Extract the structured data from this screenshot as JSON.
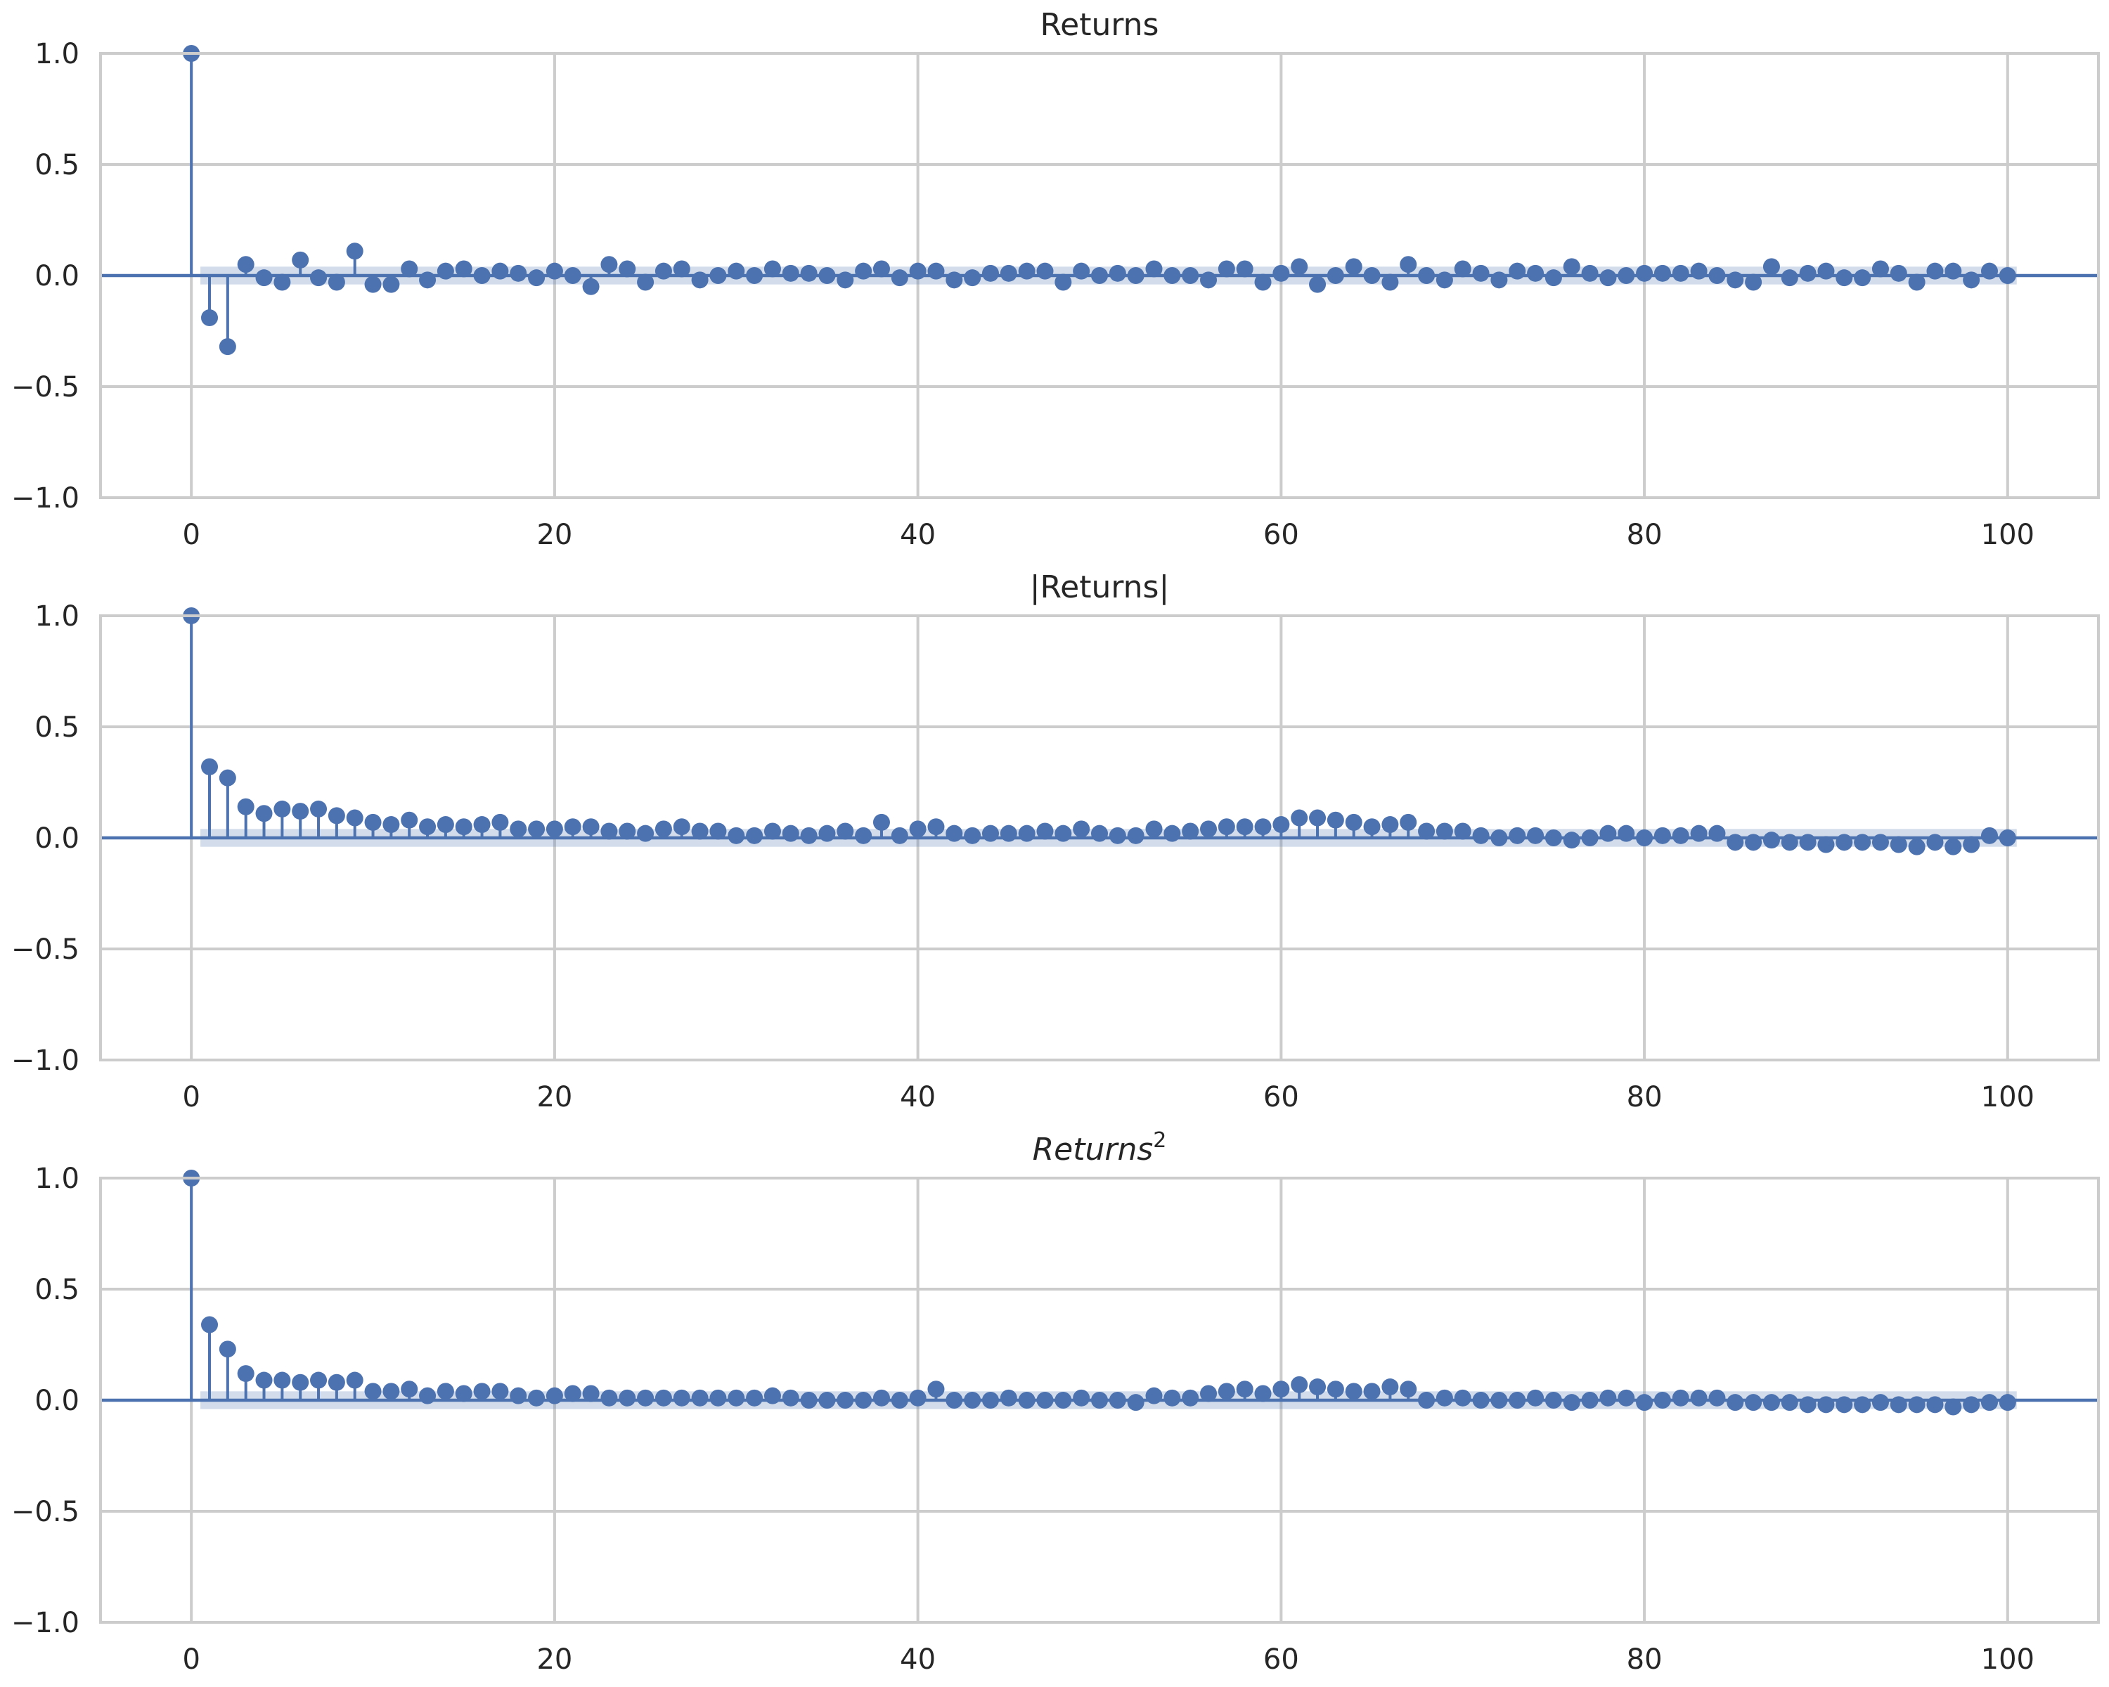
{
  "chart_data": [
    {
      "type": "stem",
      "title": "Returns",
      "xlim": [
        -5,
        105
      ],
      "ylim": [
        -1.0,
        1.0
      ],
      "xticks": [
        0,
        20,
        40,
        60,
        80,
        100
      ],
      "yticks": [
        1.0,
        0.5,
        0.0,
        -0.5,
        -1.0
      ],
      "xtick_labels": [
        "0",
        "20",
        "40",
        "60",
        "80",
        "100"
      ],
      "ytick_labels": [
        "1.0",
        "0.5",
        "0.0",
        "−0.5",
        "−1.0"
      ],
      "grid": true,
      "confidence_band": 0.04,
      "lags": [
        0,
        1,
        2,
        3,
        4,
        5,
        6,
        7,
        8,
        9,
        10,
        11,
        12,
        13,
        14,
        15,
        16,
        17,
        18,
        19,
        20,
        21,
        22,
        23,
        24,
        25,
        26,
        27,
        28,
        29,
        30,
        31,
        32,
        33,
        34,
        35,
        36,
        37,
        38,
        39,
        40,
        41,
        42,
        43,
        44,
        45,
        46,
        47,
        48,
        49,
        50,
        51,
        52,
        53,
        54,
        55,
        56,
        57,
        58,
        59,
        60,
        61,
        62,
        63,
        64,
        65,
        66,
        67,
        68,
        69,
        70,
        71,
        72,
        73,
        74,
        75,
        76,
        77,
        78,
        79,
        80,
        81,
        82,
        83,
        84,
        85,
        86,
        87,
        88,
        89,
        90,
        91,
        92,
        93,
        94,
        95,
        96,
        97,
        98,
        99,
        100
      ],
      "values": [
        1.0,
        -0.19,
        -0.32,
        0.05,
        -0.01,
        -0.03,
        0.07,
        -0.01,
        -0.03,
        0.11,
        -0.04,
        -0.04,
        0.03,
        -0.02,
        0.02,
        0.03,
        0.0,
        0.02,
        0.01,
        -0.01,
        0.02,
        0.0,
        -0.05,
        0.05,
        0.03,
        -0.03,
        0.02,
        0.03,
        -0.02,
        0.0,
        0.02,
        0.0,
        0.03,
        0.01,
        0.01,
        0.0,
        -0.02,
        0.02,
        0.03,
        -0.01,
        0.02,
        0.02,
        -0.02,
        -0.01,
        0.01,
        0.01,
        0.02,
        0.02,
        -0.03,
        0.02,
        0.0,
        0.01,
        0.0,
        0.03,
        0.0,
        0.0,
        -0.02,
        0.03,
        0.03,
        -0.03,
        0.01,
        0.04,
        -0.04,
        0.0,
        0.04,
        0.0,
        -0.03,
        0.05,
        0.0,
        -0.02,
        0.03,
        0.01,
        -0.02,
        0.02,
        0.01,
        -0.01,
        0.04,
        0.01,
        -0.01,
        0.0,
        0.01,
        0.01,
        0.01,
        0.02,
        0.0,
        -0.02,
        -0.03,
        0.04,
        -0.01,
        0.01,
        0.02,
        -0.01,
        -0.01,
        0.03,
        0.01,
        -0.03,
        0.02,
        0.02,
        -0.02,
        0.02,
        0.0
      ]
    },
    {
      "type": "stem",
      "title": "|Returns|",
      "xlim": [
        -5,
        105
      ],
      "ylim": [
        -1.0,
        1.0
      ],
      "xticks": [
        0,
        20,
        40,
        60,
        80,
        100
      ],
      "yticks": [
        1.0,
        0.5,
        0.0,
        -0.5,
        -1.0
      ],
      "xtick_labels": [
        "0",
        "20",
        "40",
        "60",
        "80",
        "100"
      ],
      "ytick_labels": [
        "1.0",
        "0.5",
        "0.0",
        "−0.5",
        "−1.0"
      ],
      "grid": true,
      "confidence_band": 0.04,
      "lags": [
        0,
        1,
        2,
        3,
        4,
        5,
        6,
        7,
        8,
        9,
        10,
        11,
        12,
        13,
        14,
        15,
        16,
        17,
        18,
        19,
        20,
        21,
        22,
        23,
        24,
        25,
        26,
        27,
        28,
        29,
        30,
        31,
        32,
        33,
        34,
        35,
        36,
        37,
        38,
        39,
        40,
        41,
        42,
        43,
        44,
        45,
        46,
        47,
        48,
        49,
        50,
        51,
        52,
        53,
        54,
        55,
        56,
        57,
        58,
        59,
        60,
        61,
        62,
        63,
        64,
        65,
        66,
        67,
        68,
        69,
        70,
        71,
        72,
        73,
        74,
        75,
        76,
        77,
        78,
        79,
        80,
        81,
        82,
        83,
        84,
        85,
        86,
        87,
        88,
        89,
        90,
        91,
        92,
        93,
        94,
        95,
        96,
        97,
        98,
        99,
        100
      ],
      "values": [
        1.0,
        0.32,
        0.27,
        0.14,
        0.11,
        0.13,
        0.12,
        0.13,
        0.1,
        0.09,
        0.07,
        0.06,
        0.08,
        0.05,
        0.06,
        0.05,
        0.06,
        0.07,
        0.04,
        0.04,
        0.04,
        0.05,
        0.05,
        0.03,
        0.03,
        0.02,
        0.04,
        0.05,
        0.03,
        0.03,
        0.01,
        0.01,
        0.03,
        0.02,
        0.01,
        0.02,
        0.03,
        0.01,
        0.07,
        0.01,
        0.04,
        0.05,
        0.02,
        0.01,
        0.02,
        0.02,
        0.02,
        0.03,
        0.02,
        0.04,
        0.02,
        0.01,
        0.01,
        0.04,
        0.02,
        0.03,
        0.04,
        0.05,
        0.05,
        0.05,
        0.06,
        0.09,
        0.09,
        0.08,
        0.07,
        0.05,
        0.06,
        0.07,
        0.03,
        0.03,
        0.03,
        0.01,
        0.0,
        0.01,
        0.01,
        0.0,
        -0.01,
        0.0,
        0.02,
        0.02,
        0.0,
        0.01,
        0.01,
        0.02,
        0.02,
        -0.02,
        -0.02,
        -0.01,
        -0.02,
        -0.02,
        -0.03,
        -0.02,
        -0.02,
        -0.02,
        -0.03,
        -0.04,
        -0.02,
        -0.04,
        -0.03,
        0.01,
        0.0
      ]
    },
    {
      "type": "stem",
      "title": "Returns",
      "title_superscript": "2",
      "xlim": [
        -5,
        105
      ],
      "ylim": [
        -1.0,
        1.0
      ],
      "xticks": [
        0,
        20,
        40,
        60,
        80,
        100
      ],
      "yticks": [
        1.0,
        0.5,
        0.0,
        -0.5,
        -1.0
      ],
      "xtick_labels": [
        "0",
        "20",
        "40",
        "60",
        "80",
        "100"
      ],
      "ytick_labels": [
        "1.0",
        "0.5",
        "0.0",
        "−0.5",
        "−1.0"
      ],
      "grid": true,
      "confidence_band": 0.04,
      "lags": [
        0,
        1,
        2,
        3,
        4,
        5,
        6,
        7,
        8,
        9,
        10,
        11,
        12,
        13,
        14,
        15,
        16,
        17,
        18,
        19,
        20,
        21,
        22,
        23,
        24,
        25,
        26,
        27,
        28,
        29,
        30,
        31,
        32,
        33,
        34,
        35,
        36,
        37,
        38,
        39,
        40,
        41,
        42,
        43,
        44,
        45,
        46,
        47,
        48,
        49,
        50,
        51,
        52,
        53,
        54,
        55,
        56,
        57,
        58,
        59,
        60,
        61,
        62,
        63,
        64,
        65,
        66,
        67,
        68,
        69,
        70,
        71,
        72,
        73,
        74,
        75,
        76,
        77,
        78,
        79,
        80,
        81,
        82,
        83,
        84,
        85,
        86,
        87,
        88,
        89,
        90,
        91,
        92,
        93,
        94,
        95,
        96,
        97,
        98,
        99,
        100
      ],
      "values": [
        1.0,
        0.34,
        0.23,
        0.12,
        0.09,
        0.09,
        0.08,
        0.09,
        0.08,
        0.09,
        0.04,
        0.04,
        0.05,
        0.02,
        0.04,
        0.03,
        0.04,
        0.04,
        0.02,
        0.01,
        0.02,
        0.03,
        0.03,
        0.01,
        0.01,
        0.01,
        0.01,
        0.01,
        0.01,
        0.01,
        0.01,
        0.01,
        0.02,
        0.01,
        0.0,
        0.0,
        0.0,
        0.0,
        0.01,
        0.0,
        0.01,
        0.05,
        0.0,
        0.0,
        0.0,
        0.01,
        0.0,
        0.0,
        0.0,
        0.01,
        0.0,
        0.0,
        -0.01,
        0.02,
        0.01,
        0.01,
        0.03,
        0.04,
        0.05,
        0.03,
        0.05,
        0.07,
        0.06,
        0.05,
        0.04,
        0.04,
        0.06,
        0.05,
        0.0,
        0.01,
        0.01,
        0.0,
        0.0,
        0.0,
        0.01,
        0.0,
        -0.01,
        0.0,
        0.01,
        0.01,
        -0.01,
        0.0,
        0.01,
        0.01,
        0.01,
        -0.01,
        -0.01,
        -0.01,
        -0.01,
        -0.02,
        -0.02,
        -0.02,
        -0.02,
        -0.01,
        -0.02,
        -0.02,
        -0.02,
        -0.03,
        -0.02,
        -0.01,
        -0.01
      ]
    }
  ],
  "colors": {
    "series": "#4c72b0",
    "grid": "#cccccc",
    "text": "#262626"
  }
}
